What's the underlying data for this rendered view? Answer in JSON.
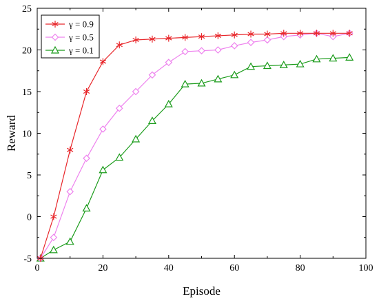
{
  "chart_data": {
    "type": "line",
    "title": "",
    "xlabel": "Episode",
    "ylabel": "Reward",
    "xlim": [
      0,
      100
    ],
    "ylim": [
      -5,
      25
    ],
    "xticks": [
      0,
      20,
      40,
      60,
      80,
      100
    ],
    "yticks": [
      -5,
      0,
      5,
      10,
      15,
      20,
      25
    ],
    "grid": false,
    "legend_position": "top-left",
    "x": [
      1,
      5,
      10,
      15,
      20,
      25,
      30,
      35,
      40,
      45,
      50,
      55,
      60,
      65,
      70,
      75,
      80,
      85,
      90,
      95
    ],
    "series": [
      {
        "name": "γ = 0.9",
        "color": "#e8262a",
        "marker": "asterisk",
        "values": [
          -5,
          0,
          8,
          15,
          18.6,
          20.6,
          21.2,
          21.3,
          21.4,
          21.5,
          21.6,
          21.7,
          21.8,
          21.9,
          21.9,
          22,
          22,
          22,
          22,
          22
        ]
      },
      {
        "name": "γ = 0.5",
        "color": "#ee82ee",
        "marker": "diamond",
        "values": [
          -5,
          -2.5,
          3,
          7,
          10.5,
          13,
          15,
          17,
          18.5,
          19.8,
          19.9,
          20,
          20.5,
          20.9,
          21.2,
          21.6,
          21.8,
          22,
          21.6,
          22
        ]
      },
      {
        "name": "γ = 0.1",
        "color": "#1a9b1a",
        "marker": "triangle",
        "values": [
          -5,
          -4,
          -3,
          1,
          5.6,
          7.1,
          9.3,
          11.5,
          13.5,
          15.9,
          16,
          16.5,
          17,
          18,
          18.1,
          18.2,
          18.3,
          18.9,
          19,
          19.1
        ]
      }
    ]
  }
}
